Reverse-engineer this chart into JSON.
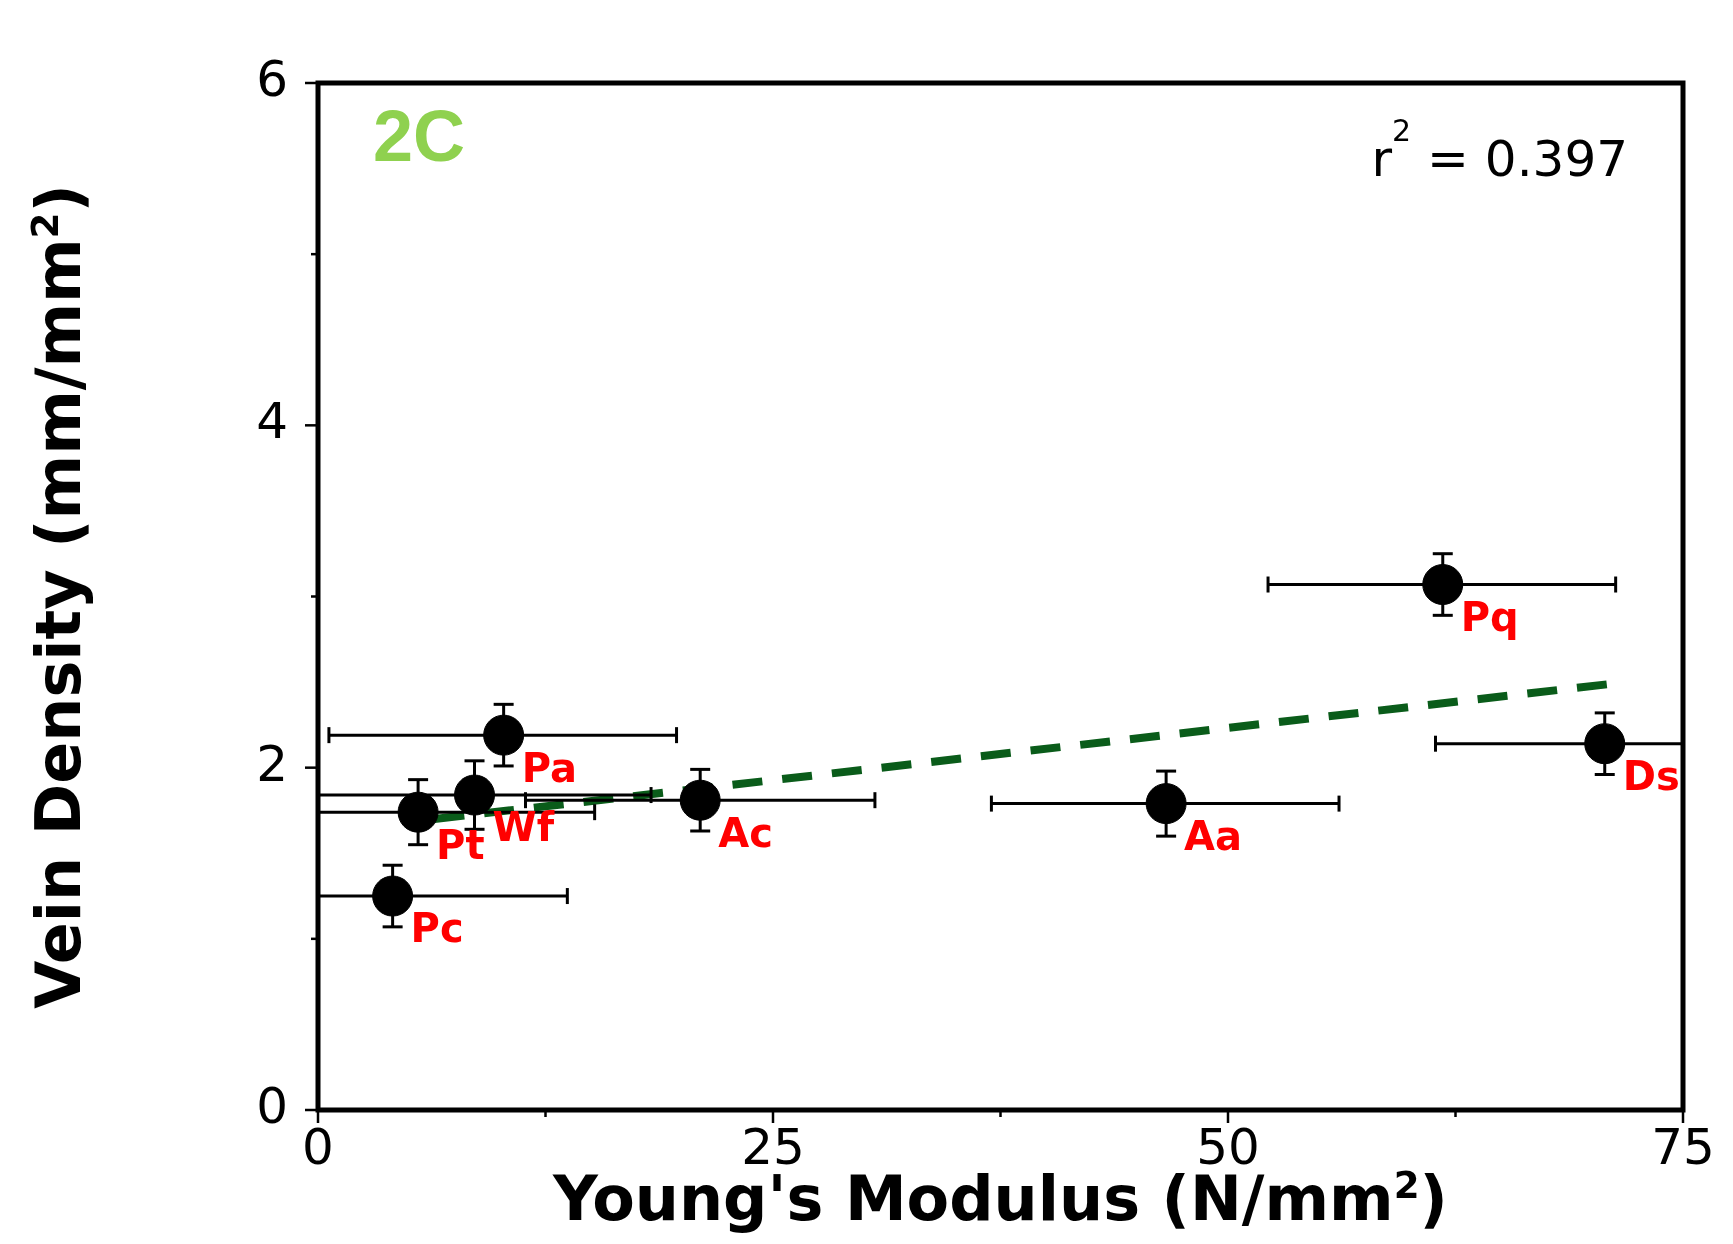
{
  "chart_data": {
    "type": "scatter",
    "xlabel": "Young's Modulus (N/mm$^{2}$)",
    "ylabel": "Vein Density (mm/mm$^{2}$)",
    "xlim": [
      0,
      75
    ],
    "ylim": [
      0,
      6
    ],
    "xticks": [
      0,
      {
        "value": 12.5,
        "label": null
      },
      25,
      {
        "value": 37.5,
        "label": null
      },
      50,
      {
        "value": 62.5,
        "label": null
      },
      75
    ],
    "yticks": [
      0,
      {
        "value": 1,
        "label": null
      },
      2,
      {
        "value": 3,
        "label": null
      },
      4,
      {
        "value": 5,
        "label": null
      },
      6
    ],
    "grid": false,
    "legend": false,
    "marker": "circle",
    "series": [
      {
        "color": "#000000",
        "x": [
          10.2,
          8.6,
          5.5,
          21.0,
          4.1,
          46.6,
          61.8,
          70.7
        ],
        "values": [
          2.19,
          1.84,
          1.74,
          1.81,
          1.25,
          1.79,
          3.07,
          2.14
        ],
        "errors": [
          0.18,
          0.2,
          0.19,
          0.18,
          0.18,
          0.19,
          0.18,
          0.18
        ],
        "xerrors": [
          [
            0.6,
            19.7
          ],
          [
            0,
            18.3
          ],
          [
            0,
            15.2
          ],
          [
            11.4,
            30.6
          ],
          [
            0,
            13.7
          ],
          [
            37.0,
            56.1
          ],
          [
            52.2,
            71.3
          ],
          [
            61.4,
            75
          ]
        ]
      },
      {
        "type": "line",
        "color": "#0a5c1a",
        "line_style": "dashed",
        "marker": "none",
        "x": [
          6.4,
          71.1
        ],
        "values": [
          1.7,
          2.49
        ]
      }
    ],
    "annotations": [
      {
        "text": "Pa",
        "x": 10.2,
        "y": 2.19
      },
      {
        "text": "Wf",
        "x": 8.6,
        "y": 1.84
      },
      {
        "text": "Pt",
        "x": 5.5,
        "y": 1.74
      },
      {
        "text": "Ac",
        "x": 21.0,
        "y": 1.81
      },
      {
        "text": "Pc",
        "x": 4.1,
        "y": 1.25
      },
      {
        "text": "Aa",
        "x": 46.6,
        "y": 1.79
      },
      {
        "text": "Pq",
        "x": 61.8,
        "y": 3.07
      },
      {
        "text": "Ds",
        "x": 70.7,
        "y": 2.14
      },
      "2C",
      "r$^{2}$ = 0.397"
    ]
  }
}
